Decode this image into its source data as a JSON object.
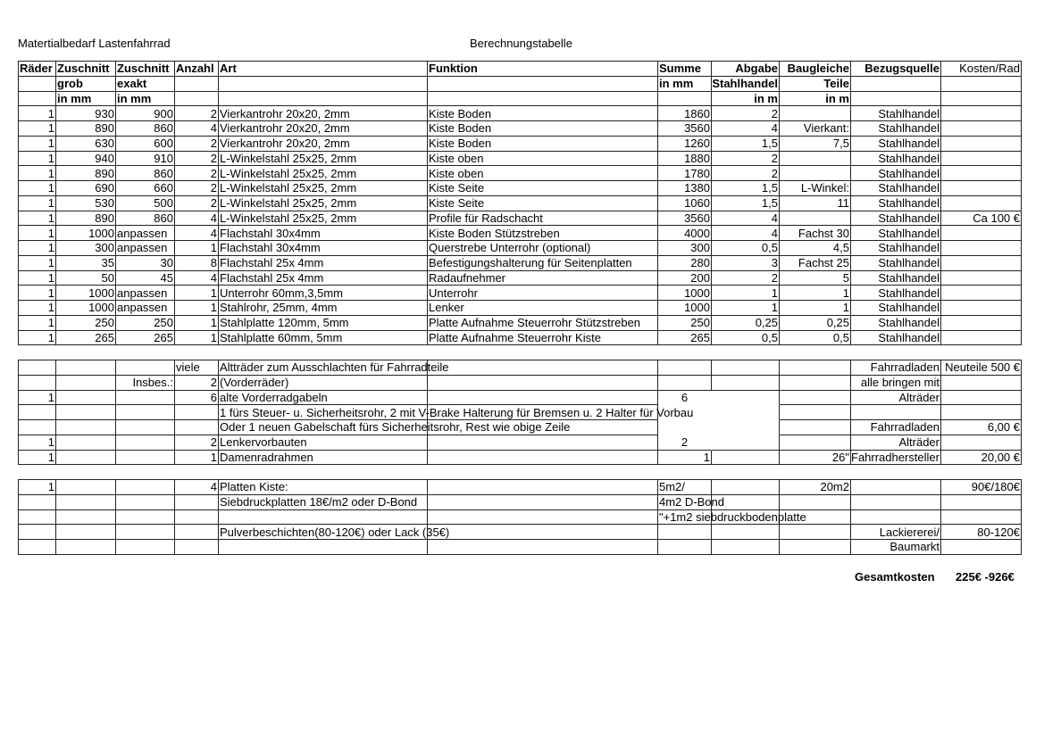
{
  "header": {
    "title_left": "Matertialbedarf Lastenfahrrad",
    "title_center": "Berechnungstabelle"
  },
  "table_main": {
    "header_rows": [
      [
        "Räder",
        "Zuschnitt",
        "Zuschnitt",
        "Anzahl",
        "Art",
        "Funktion",
        "Summe",
        "Abgabe",
        "Baugleiche",
        "Bezugsquelle",
        "Kosten/Rad"
      ],
      [
        "",
        "grob",
        "exakt",
        "",
        "",
        "",
        "in mm",
        "Stahlhandel",
        "Teile",
        "",
        ""
      ],
      [
        "",
        "in mm",
        "in mm",
        "",
        "",
        "",
        "",
        "in m",
        "in m",
        "",
        ""
      ]
    ],
    "rows": [
      [
        "1",
        "930",
        "900",
        "2",
        "Vierkantrohr 20x20, 2mm",
        "Kiste Boden",
        "1860",
        "2",
        "",
        "Stahlhandel",
        ""
      ],
      [
        "1",
        "890",
        "860",
        "4",
        "Vierkantrohr 20x20, 2mm",
        "Kiste Boden",
        "3560",
        "4",
        "Vierkant:",
        "Stahlhandel",
        ""
      ],
      [
        "1",
        "630",
        "600",
        "2",
        "Vierkantrohr 20x20, 2mm",
        "Kiste Boden",
        "1260",
        "1,5",
        "7,5",
        "Stahlhandel",
        ""
      ],
      [
        "1",
        "940",
        "910",
        "2",
        "L-Winkelstahl 25x25, 2mm",
        "Kiste oben",
        "1880",
        "2",
        "",
        "Stahlhandel",
        ""
      ],
      [
        "1",
        "890",
        "860",
        "2",
        "L-Winkelstahl 25x25, 2mm",
        "Kiste oben",
        "1780",
        "2",
        "",
        "Stahlhandel",
        ""
      ],
      [
        "1",
        "690",
        "660",
        "2",
        "L-Winkelstahl 25x25, 2mm",
        "Kiste Seite",
        "1380",
        "1,5",
        "L-Winkel:",
        "Stahlhandel",
        ""
      ],
      [
        "1",
        "530",
        "500",
        "2",
        "L-Winkelstahl 25x25, 2mm",
        "Kiste Seite",
        "1060",
        "1,5",
        "11",
        "Stahlhandel",
        ""
      ],
      [
        "1",
        "890",
        "860",
        "4",
        "L-Winkelstahl 25x25, 2mm",
        "Profile für Radschacht",
        "3560",
        "4",
        "",
        "Stahlhandel",
        "Ca 100 €"
      ],
      [
        "1",
        "1000",
        "anpassen",
        "4",
        "Flachstahl 30x4mm",
        "Kiste Boden Stützstreben",
        "4000",
        "4",
        "Fachst 30",
        "Stahlhandel",
        ""
      ],
      [
        "1",
        "300",
        "anpassen",
        "1",
        "Flachstahl 30x4mm",
        "Querstrebe Unterrohr (optional)",
        "300",
        "0,5",
        "4,5",
        "Stahlhandel",
        ""
      ],
      [
        "1",
        "35",
        "30",
        "8",
        "Flachstahl 25x 4mm",
        "Befestigungshalterung für Seitenplatten",
        "280",
        "3",
        "Fachst 25",
        "Stahlhandel",
        ""
      ],
      [
        "1",
        "50",
        "45",
        "4",
        "Flachstahl 25x 4mm",
        "Radaufnehmer",
        "200",
        "2",
        "5",
        "Stahlhandel",
        ""
      ],
      [
        "1",
        "1000",
        "anpassen",
        "1",
        "Unterrohr 60mm,3,5mm",
        "Unterrohr",
        "1000",
        "1",
        "1",
        "Stahlhandel",
        ""
      ],
      [
        "1",
        "1000",
        "anpassen",
        "1",
        "Stahlrohr, 25mm, 4mm",
        "Lenker",
        "1000",
        "1",
        "1",
        "Stahlhandel",
        ""
      ],
      [
        "1",
        "250",
        "250",
        "1",
        "Stahlplatte 120mm, 5mm",
        "Platte Aufnahme Steuerrohr Stützstreben",
        "250",
        "0,25",
        "0,25",
        "Stahlhandel",
        ""
      ],
      [
        "1",
        "265",
        "265",
        "1",
        "Stahlplatte 60mm, 5mm",
        "Platte Aufnahme Steuerrohr Kiste",
        "265",
        "0,5",
        "0,5",
        "Stahlhandel",
        ""
      ]
    ]
  },
  "table_parts": {
    "rows": [
      [
        "",
        "",
        "",
        "viele",
        "Altträder zum Ausschlachten für Fahrradteile",
        "",
        "",
        "",
        "",
        "Fahrradladen",
        "Neuteile 500 €"
      ],
      [
        "",
        "",
        "Insbes.:",
        "2",
        "(Vorderräder)",
        "",
        "",
        "",
        "",
        "alle bringen mit",
        ""
      ],
      [
        "1",
        "",
        "",
        "6",
        "alte Vorderradgabeln",
        "",
        "6",
        "",
        "",
        "Alträder",
        ""
      ],
      [
        "",
        "",
        "",
        "",
        "1 fürs Steuer- u. Sicherheitsrohr, 2 mit V-Brake Halterung für Bremsen u. 2 Halter für Vorbau",
        "",
        "",
        "",
        "",
        "",
        ""
      ],
      [
        "",
        "",
        "",
        "",
        "Oder  1 neuen Gabelschaft fürs Sicherheitsrohr, Rest wie obige Zeile",
        "",
        "",
        "",
        "",
        "Fahrradladen",
        "6,00 €"
      ],
      [
        "1",
        "",
        "",
        "2",
        "Lenkervorbauten",
        "",
        "2",
        "",
        "",
        "Alträder",
        ""
      ],
      [
        "1",
        "",
        "",
        "1",
        "Damenradrahmen",
        "",
        "1",
        "",
        "26\"",
        "Fahrradhersteller",
        "20,00 €"
      ]
    ]
  },
  "table_plates": {
    "rows": [
      [
        "1",
        "",
        "",
        "4",
        "Platten Kiste:",
        "",
        "5m2/",
        "",
        "20m2",
        "",
        "90€/180€"
      ],
      [
        "",
        "",
        "",
        "",
        "Siebdruckplatten 18€/m2 oder D-Bond",
        "",
        "4m2 D-Bond",
        "",
        "",
        "",
        ""
      ],
      [
        "",
        "",
        "",
        "",
        "",
        "",
        "\"+1m2 siebdruckbodenplatte",
        "",
        "",
        "",
        ""
      ],
      [
        "",
        "",
        "",
        "",
        "Pulverbeschichten(80-120€) oder Lack (35€)",
        "",
        "",
        "",
        "",
        "Lackiererei/",
        "80-120€"
      ],
      [
        "",
        "",
        "",
        "",
        "",
        "",
        "",
        "",
        "",
        "Baumarkt",
        ""
      ]
    ]
  },
  "footer": {
    "total_label": "Gesamtkosten",
    "total_value": "225€ -926€"
  }
}
